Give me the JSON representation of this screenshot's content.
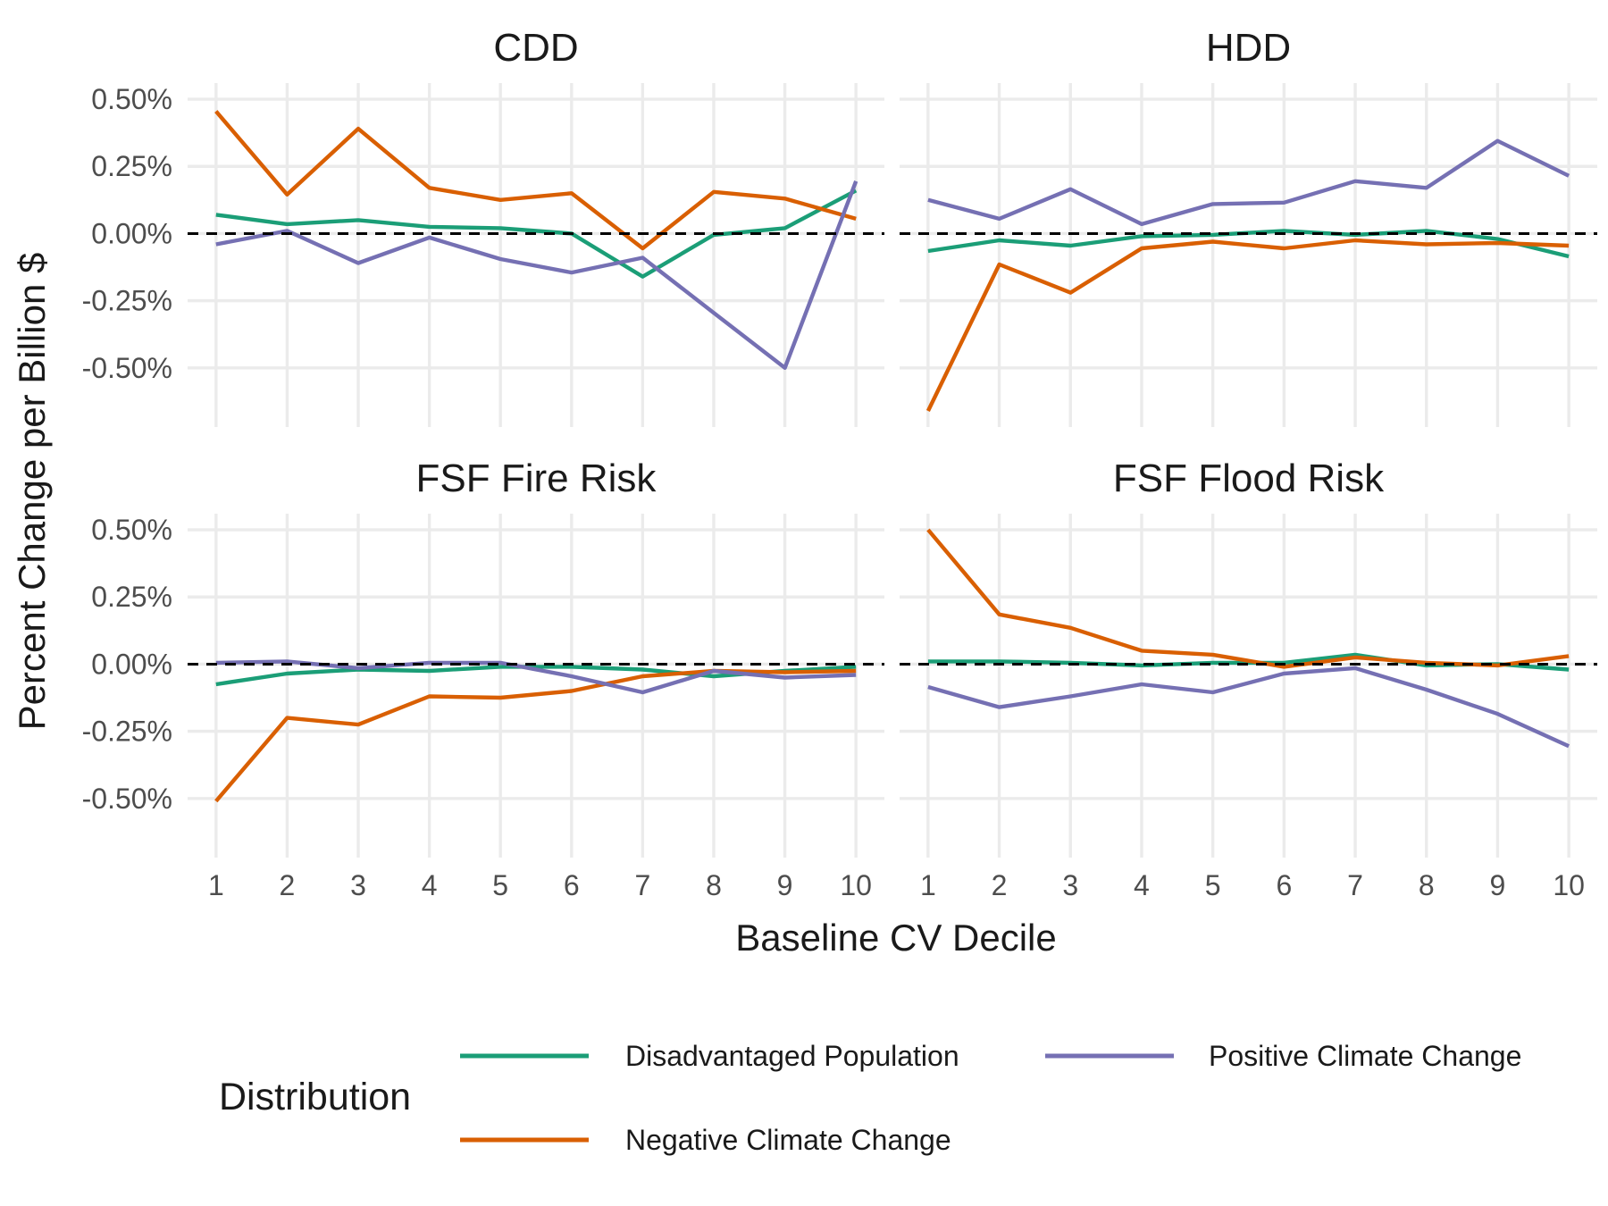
{
  "chart_data": {
    "type": "line",
    "layout": "facet-grid-2x2",
    "xlabel": "Baseline CV Decile",
    "ylabel": "Percent Change per Billion $",
    "x": [
      1,
      2,
      3,
      4,
      5,
      6,
      7,
      8,
      9,
      10
    ],
    "x_tick_labels": [
      "1",
      "2",
      "3",
      "4",
      "5",
      "6",
      "7",
      "8",
      "9",
      "10"
    ],
    "y_ticks": [
      0.5,
      0.25,
      0.0,
      -0.25,
      -0.5
    ],
    "y_tick_labels": [
      "0.50%",
      "0.25%",
      "0.00%",
      "-0.25%",
      "-0.50%"
    ],
    "ylim": [
      -0.72,
      0.56
    ],
    "xlim": [
      0.6,
      10.4
    ],
    "reference_line": {
      "y": 0,
      "style": "dashed",
      "color": "#000000"
    },
    "grid": true,
    "legend": {
      "title": "Distribution",
      "placement": "bottom",
      "entries": [
        {
          "key": "disadvantaged",
          "label": "Disadvantaged Population",
          "color": "#1b9e77"
        },
        {
          "key": "negative",
          "label": "Negative Climate Change",
          "color": "#d95f02"
        },
        {
          "key": "positive",
          "label": "Positive Climate Change",
          "color": "#7570b3"
        }
      ]
    },
    "panels": [
      {
        "title": "CDD",
        "series": [
          {
            "key": "disadvantaged",
            "values": [
              0.07,
              0.035,
              0.05,
              0.025,
              0.02,
              0.0,
              -0.16,
              -0.005,
              0.02,
              0.16
            ]
          },
          {
            "key": "negative",
            "values": [
              0.455,
              0.145,
              0.39,
              0.17,
              0.125,
              0.15,
              -0.055,
              0.155,
              0.13,
              0.055
            ]
          },
          {
            "key": "positive",
            "values": [
              -0.04,
              0.01,
              -0.11,
              -0.015,
              -0.095,
              -0.145,
              -0.09,
              -0.295,
              -0.5,
              0.195
            ]
          }
        ]
      },
      {
        "title": "HDD",
        "series": [
          {
            "key": "disadvantaged",
            "values": [
              -0.065,
              -0.025,
              -0.045,
              -0.01,
              -0.005,
              0.01,
              -0.005,
              0.01,
              -0.02,
              -0.085
            ]
          },
          {
            "key": "negative",
            "values": [
              -0.66,
              -0.115,
              -0.22,
              -0.055,
              -0.03,
              -0.055,
              -0.025,
              -0.04,
              -0.035,
              -0.045
            ]
          },
          {
            "key": "positive",
            "values": [
              0.125,
              0.055,
              0.165,
              0.035,
              0.11,
              0.115,
              0.195,
              0.17,
              0.345,
              0.215
            ]
          }
        ]
      },
      {
        "title": "FSF Fire Risk",
        "series": [
          {
            "key": "disadvantaged",
            "values": [
              -0.075,
              -0.035,
              -0.02,
              -0.025,
              -0.01,
              -0.01,
              -0.02,
              -0.045,
              -0.025,
              -0.01
            ]
          },
          {
            "key": "negative",
            "values": [
              -0.51,
              -0.2,
              -0.225,
              -0.12,
              -0.125,
              -0.1,
              -0.045,
              -0.025,
              -0.03,
              -0.025
            ]
          },
          {
            "key": "positive",
            "values": [
              0.005,
              0.01,
              -0.015,
              0.005,
              0.005,
              -0.045,
              -0.105,
              -0.025,
              -0.05,
              -0.04
            ]
          }
        ]
      },
      {
        "title": "FSF Flood Risk",
        "series": [
          {
            "key": "disadvantaged",
            "values": [
              0.01,
              0.01,
              0.005,
              -0.005,
              0.005,
              0.005,
              0.035,
              -0.005,
              0.0,
              -0.02
            ]
          },
          {
            "key": "negative",
            "values": [
              0.5,
              0.185,
              0.135,
              0.05,
              0.035,
              -0.01,
              0.025,
              0.005,
              -0.005,
              0.03
            ]
          },
          {
            "key": "positive",
            "values": [
              -0.085,
              -0.16,
              -0.12,
              -0.075,
              -0.105,
              -0.035,
              -0.015,
              -0.095,
              -0.185,
              -0.305
            ]
          }
        ]
      }
    ]
  }
}
